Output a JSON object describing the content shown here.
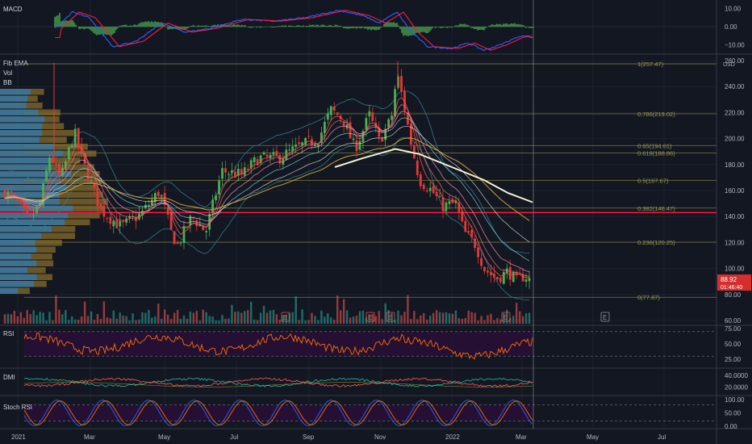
{
  "colors": {
    "background": "#131722",
    "grid": "#1e222d",
    "up": "#26a69a",
    "down": "#ef5350",
    "candle_up": "#4caf50",
    "candle_down": "#e53935",
    "macd_line": "#2962ff",
    "signal_line": "#ff1744",
    "hist_pos": "#4caf50",
    "rsi_line": "#ff6d00",
    "rsi_fill": "#2a0f3a",
    "dmi_plus": "#26a69a",
    "dmi_minus": "#ef5350",
    "stoch_k": "#2962ff",
    "stoch_d": "#ff6d00",
    "sma200": "#f5f0d6",
    "ema_gold": "#d8a93a",
    "fib_line": "#7a7a3a",
    "hline": "#ff1744",
    "price_badge": "#d32f2f",
    "vp_blue": "#1e88e5",
    "vp_gold": "#b08a2c"
  },
  "panes": {
    "macd": {
      "label": "MACD",
      "ticks": [
        "10.00",
        "0.00",
        "−10.00"
      ],
      "tick_values": [
        10,
        0,
        -10
      ]
    },
    "main": {
      "labels": [
        "Fib EMA",
        "Vol",
        "BB"
      ],
      "ticks": [
        "260.00",
        "240.00",
        "220.00",
        "200.00",
        "180.00",
        "160.00",
        "140.00",
        "120.00",
        "100.00",
        "80.00",
        "60.00"
      ],
      "tick_values": [
        260,
        240,
        220,
        200,
        180,
        160,
        140,
        120,
        100,
        80,
        60
      ],
      "currency": "USD"
    },
    "rsi": {
      "label": "RSI",
      "ticks": [
        "75.00",
        "50.00",
        "25.00"
      ],
      "tick_values": [
        75,
        50,
        25
      ]
    },
    "dmi": {
      "label": "DMI",
      "ticks": [
        "40.0000",
        "20.0000"
      ],
      "tick_values": [
        40,
        20
      ]
    },
    "stoch": {
      "label": "Stoch RSI",
      "ticks": [
        "100.00",
        "50.00",
        "0.00"
      ],
      "tick_values": [
        100,
        50,
        0
      ]
    }
  },
  "fib_levels": [
    {
      "label": "1(257.47)",
      "value": 257.47
    },
    {
      "label": "0.786(219.02)",
      "value": 219.02
    },
    {
      "label": "0.65(194.61)",
      "value": 194.61
    },
    {
      "label": "0.618(188.86)",
      "value": 188.86
    },
    {
      "label": "0.5(167.67)",
      "value": 167.67
    },
    {
      "label": "0.382(146.47)",
      "value": 146.47
    },
    {
      "label": "0.236(120.25)",
      "value": 120.25
    },
    {
      "label": "0(77.87)",
      "value": 77.87
    }
  ],
  "horizontal_line": {
    "value": 143
  },
  "price_badge": {
    "price": "88.92",
    "countdown": "01:46:40"
  },
  "earnings_marker": "E",
  "x_axis": [
    "2021",
    "Mar",
    "May",
    "Jul",
    "Sep",
    "Nov",
    "2022",
    "Mar",
    "May",
    "Jul"
  ],
  "chart_data": {
    "type": "line",
    "title": "",
    "x": [
      "2021",
      "Mar",
      "May",
      "Jul",
      "Sep",
      "Nov",
      "2022",
      "Mar"
    ],
    "series": [
      {
        "values": [
          155,
          172,
          128,
          165,
          210,
          245,
          150,
          89
        ]
      }
    ],
    "ylim": [
      60,
      262
    ],
    "grid": true,
    "legend": "top-left"
  }
}
